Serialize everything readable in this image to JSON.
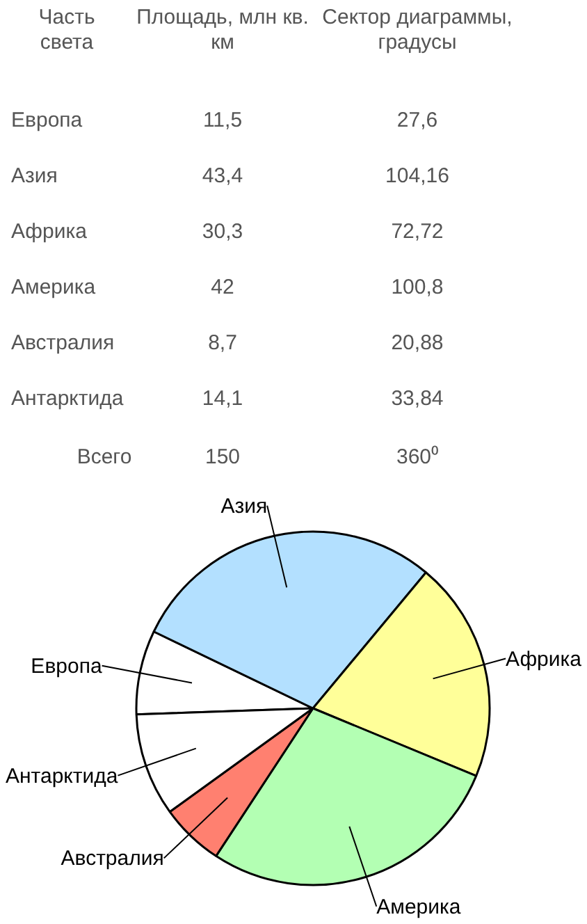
{
  "chart_data": {
    "type": "pie",
    "categories": [
      "Европа",
      "Азия",
      "Африка",
      "Америка",
      "Австралия",
      "Антарктида"
    ],
    "values": [
      7.7,
      28.9,
      20.2,
      28,
      5.8,
      9.4
    ],
    "colors": [
      "#ffffff",
      "#b3e0ff",
      "#ffff99",
      "#b3ffb3",
      "#ff8070",
      "#ffffff"
    ],
    "annotations": [
      "Часть света",
      "Площадь, млн кв. км",
      "Сектор диаграммы, градусы",
      "11,5",
      "27,6",
      "43,4",
      "104,16",
      "30,3",
      "72,72",
      "42",
      "100,8",
      "8,7",
      "20,88",
      "14,1",
      "33,84",
      "Всего",
      "150",
      "360⁰"
    ],
    "legend": false
  }
}
